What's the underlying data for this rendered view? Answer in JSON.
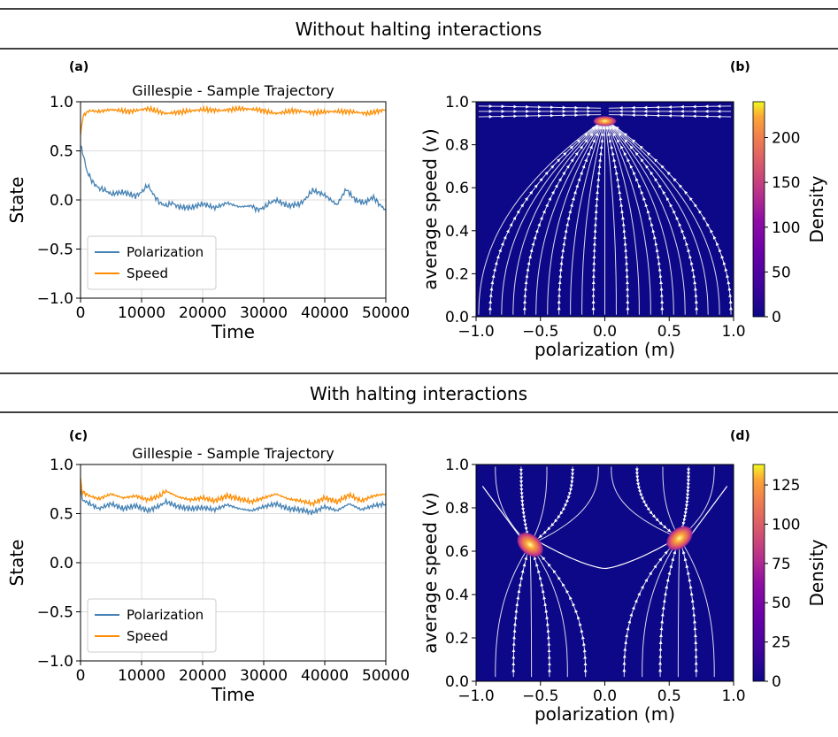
{
  "sections": [
    {
      "title": "Without halting interactions"
    },
    {
      "title": "With halting interactions"
    }
  ],
  "panel_labels": [
    "(a)",
    "(b)",
    "(c)",
    "(d)"
  ],
  "chart_data": [
    {
      "id": "a",
      "type": "line",
      "title": "Gillespie - Sample Trajectory",
      "xlabel": "Time",
      "ylabel": "State",
      "xlim": [
        0,
        50000
      ],
      "ylim": [
        -1.0,
        1.0
      ],
      "xticks": [
        "0",
        "10000",
        "20000",
        "30000",
        "40000",
        "50000"
      ],
      "yticks": [
        "−1.0",
        "−0.5",
        "0.0",
        "0.5",
        "1.0"
      ],
      "grid": true,
      "legend": "lower-left",
      "series": [
        {
          "name": "Polarization",
          "color": "#4682b4",
          "x": [
            0,
            500,
            1000,
            2000,
            3000,
            4000,
            5000,
            7000,
            9000,
            10000,
            11000,
            12000,
            13000,
            14000,
            15000,
            16000,
            18000,
            20000,
            22000,
            24000,
            26000,
            28000,
            29000,
            30000,
            31000,
            32000,
            34000,
            36000,
            37000,
            38000,
            40000,
            42000,
            43500,
            45000,
            46500,
            48000,
            49000,
            50000
          ],
          "y": [
            0.55,
            0.45,
            0.3,
            0.18,
            0.12,
            0.1,
            0.06,
            0.08,
            0.04,
            0.08,
            0.15,
            0.05,
            -0.03,
            -0.06,
            -0.03,
            -0.07,
            -0.08,
            -0.04,
            -0.08,
            -0.03,
            -0.07,
            -0.06,
            -0.1,
            -0.08,
            -0.03,
            0.0,
            -0.06,
            -0.04,
            0.02,
            0.1,
            0.05,
            -0.05,
            0.11,
            0.0,
            -0.03,
            0.03,
            -0.05,
            -0.1
          ]
        },
        {
          "name": "Speed",
          "color": "#ff8c00",
          "x": [
            0,
            300,
            800,
            1500,
            3000,
            5000,
            8000,
            11000,
            14000,
            17000,
            20000,
            23000,
            26000,
            29000,
            32000,
            35000,
            38000,
            41000,
            44000,
            47000,
            50000
          ],
          "y": [
            0.65,
            0.83,
            0.88,
            0.91,
            0.9,
            0.92,
            0.9,
            0.93,
            0.88,
            0.9,
            0.92,
            0.91,
            0.93,
            0.92,
            0.88,
            0.91,
            0.89,
            0.9,
            0.9,
            0.88,
            0.92
          ]
        }
      ]
    },
    {
      "id": "b",
      "type": "heatmap",
      "xlabel": "polarization (m)",
      "ylabel": "average speed (v)",
      "xlim": [
        -1.0,
        1.0
      ],
      "ylim": [
        0.0,
        1.0
      ],
      "xticks": [
        "−1.0",
        "−0.5",
        "0.0",
        "0.5",
        "1.0"
      ],
      "yticks": [
        "0.0",
        "0.2",
        "0.4",
        "0.6",
        "0.8",
        "1.0"
      ],
      "colorbar": {
        "label": "Density",
        "min": 0,
        "max": 240,
        "ticks": [
          "0",
          "50",
          "100",
          "150",
          "200"
        ],
        "tick_values": [
          0,
          50,
          100,
          150,
          200
        ],
        "colormap": "plasma"
      },
      "peaks": [
        {
          "m": 0.0,
          "v": 0.91,
          "density": 240
        }
      ],
      "background_color": "#0d0887"
    },
    {
      "id": "c",
      "type": "line",
      "title": "Gillespie - Sample Trajectory",
      "xlabel": "Time",
      "ylabel": "State",
      "xlim": [
        0,
        50000
      ],
      "ylim": [
        -1.0,
        1.0
      ],
      "xticks": [
        "0",
        "10000",
        "20000",
        "30000",
        "40000",
        "50000"
      ],
      "yticks": [
        "−1.0",
        "−0.5",
        "0.0",
        "0.5",
        "1.0"
      ],
      "grid": true,
      "legend": "lower-left",
      "series": [
        {
          "name": "Polarization",
          "color": "#4682b4",
          "x": [
            0,
            300,
            1500,
            3000,
            5000,
            7000,
            9000,
            11000,
            13000,
            14000,
            16000,
            18000,
            20000,
            22000,
            24000,
            26000,
            28000,
            30000,
            32000,
            34000,
            36000,
            38000,
            40000,
            42000,
            44000,
            46000,
            48000,
            50000
          ],
          "y": [
            0.75,
            0.64,
            0.6,
            0.55,
            0.6,
            0.55,
            0.58,
            0.53,
            0.58,
            0.62,
            0.57,
            0.55,
            0.56,
            0.54,
            0.59,
            0.55,
            0.53,
            0.57,
            0.6,
            0.55,
            0.54,
            0.51,
            0.57,
            0.53,
            0.6,
            0.54,
            0.58,
            0.6
          ]
        },
        {
          "name": "Speed",
          "color": "#ff8c00",
          "x": [
            0,
            300,
            1500,
            3000,
            5000,
            7000,
            9000,
            11000,
            13000,
            14000,
            16000,
            18000,
            20000,
            22000,
            24000,
            26000,
            28000,
            30000,
            32000,
            34000,
            36000,
            38000,
            40000,
            42000,
            44000,
            46000,
            48000,
            50000
          ],
          "y": [
            0.85,
            0.72,
            0.68,
            0.65,
            0.7,
            0.66,
            0.68,
            0.64,
            0.68,
            0.73,
            0.67,
            0.64,
            0.66,
            0.63,
            0.68,
            0.65,
            0.62,
            0.66,
            0.7,
            0.65,
            0.63,
            0.6,
            0.66,
            0.62,
            0.69,
            0.63,
            0.68,
            0.7
          ]
        }
      ]
    },
    {
      "id": "d",
      "type": "heatmap",
      "xlabel": "polarization (m)",
      "ylabel": "average speed (v)",
      "xlim": [
        -1.0,
        1.0
      ],
      "ylim": [
        0.0,
        1.0
      ],
      "xticks": [
        "−1.0",
        "−0.5",
        "0.0",
        "0.5",
        "1.0"
      ],
      "yticks": [
        "0.0",
        "0.2",
        "0.4",
        "0.6",
        "0.8",
        "1.0"
      ],
      "colorbar": {
        "label": "Density",
        "min": 0,
        "max": 138,
        "ticks": [
          "0",
          "25",
          "50",
          "75",
          "100",
          "125"
        ],
        "tick_values": [
          0,
          25,
          50,
          75,
          100,
          125
        ],
        "colormap": "plasma"
      },
      "peaks": [
        {
          "m": -0.58,
          "v": 0.63,
          "density": 138
        },
        {
          "m": 0.58,
          "v": 0.66,
          "density": 120
        }
      ],
      "background_color": "#0d0887"
    }
  ]
}
